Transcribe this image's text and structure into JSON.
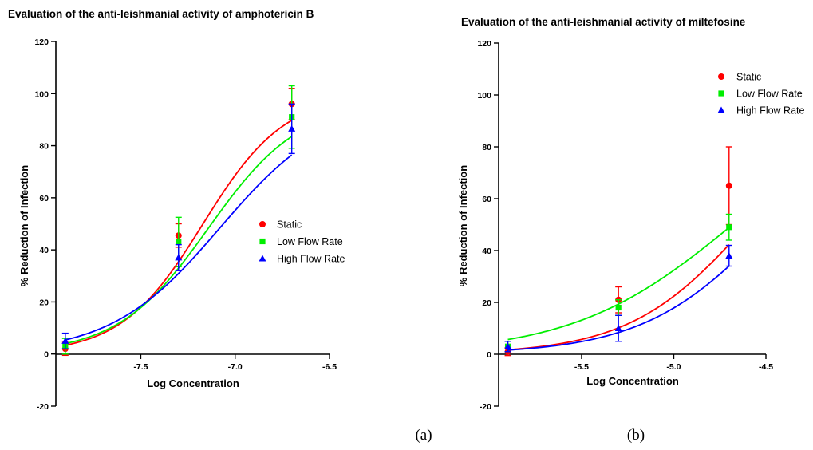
{
  "charts": [
    {
      "id": "a",
      "chart_data": {
        "type": "scatter",
        "title": "Evaluation of the anti-leishmanial activity of amphotericin B",
        "xlabel": "Log Concentration",
        "ylabel": "% Reduction of Infection",
        "xlim": [
          -7.95,
          -6.5
        ],
        "ylim": [
          -20,
          120
        ],
        "xticks": [
          -7.5,
          -7.0,
          -6.5
        ],
        "xtick_labels": [
          "-7.5",
          "-7.0",
          "-6.5"
        ],
        "yticks": [
          -20,
          0,
          20,
          40,
          60,
          80,
          100,
          120
        ],
        "ytick_labels": [
          "-20",
          "0",
          "20",
          "40",
          "60",
          "80",
          "100",
          "120"
        ],
        "legend_position": "center-right",
        "x": [
          -7.9,
          -7.3,
          -6.7
        ],
        "series": [
          {
            "name": "Static",
            "marker": "circle",
            "color": "#ff0000",
            "values": [
              2,
              45.5,
              96
            ],
            "errors": [
              2.5,
              4.5,
              6
            ],
            "fit": {
              "bottom": 0,
              "top": 100,
              "logEC50": -7.17,
              "hill": 2.0
            }
          },
          {
            "name": "Low Flow Rate",
            "marker": "square",
            "color": "#00ee00",
            "values": [
              3,
              43,
              91
            ],
            "errors": [
              3,
              9.5,
              12
            ],
            "fit": {
              "bottom": 0,
              "top": 97,
              "logEC50": -7.14,
              "hill": 1.8
            }
          },
          {
            "name": "High Flow Rate",
            "marker": "triangle",
            "color": "#0000ff",
            "values": [
              5,
              37,
              86.5
            ],
            "errors": [
              3,
              5,
              9.5
            ],
            "fit": {
              "bottom": 0,
              "top": 97,
              "logEC50": -7.08,
              "hill": 1.5
            }
          }
        ]
      },
      "panel_label": "(a)"
    },
    {
      "id": "b",
      "chart_data": {
        "type": "scatter",
        "title": "Evaluation of the anti-leishmanial activity of miltefosine",
        "xlabel": "Log Concentration",
        "ylabel": "% Reduction of Infection",
        "xlim": [
          -5.95,
          -4.5
        ],
        "ylim": [
          -20,
          120
        ],
        "xticks": [
          -5.5,
          -5.0,
          -4.5
        ],
        "xtick_labels": [
          "-5.5",
          "-5.0",
          "-4.5"
        ],
        "yticks": [
          -20,
          0,
          20,
          40,
          60,
          80,
          100,
          120
        ],
        "ytick_labels": [
          "-20",
          "0",
          "20",
          "40",
          "60",
          "80",
          "100",
          "120"
        ],
        "legend_position": "top-right",
        "x": [
          -5.9,
          -5.3,
          -4.7
        ],
        "series": [
          {
            "name": "Static",
            "marker": "circle",
            "color": "#ff0000",
            "values": [
              1,
              21,
              65
            ],
            "errors": [
              1.5,
              5,
              15
            ],
            "fit": {
              "bottom": 0,
              "top": 100,
              "logEC50": -4.6,
              "hill": 1.35
            }
          },
          {
            "name": "Low Flow  Rate",
            "marker": "square",
            "color": "#00ee00",
            "values": [
              3,
              18,
              49
            ],
            "errors": [
              2,
              3,
              5
            ],
            "fit": {
              "bottom": 0,
              "top": 100,
              "logEC50": -4.68,
              "hill": 1.0
            }
          },
          {
            "name": "High Flow Rate",
            "marker": "triangle",
            "color": "#0000ff",
            "values": [
              3,
              10,
              38
            ],
            "errors": [
              2,
              5,
              4
            ],
            "fit": {
              "bottom": 0,
              "top": 100,
              "logEC50": -4.47,
              "hill": 1.25
            }
          }
        ]
      },
      "panel_label": "(b)"
    }
  ]
}
